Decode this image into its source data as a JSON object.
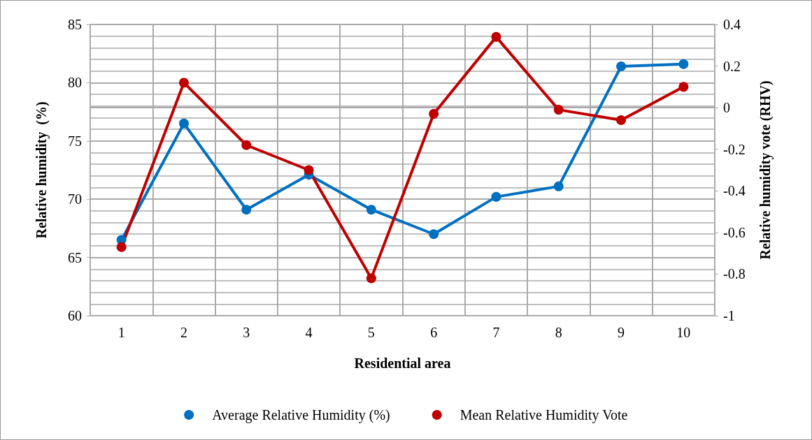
{
  "chart_data": {
    "type": "line",
    "xlabel": "Residential area",
    "ylabel": "Relative humidity  (%)",
    "y2label": "Relative humidity vote (RHV)",
    "categories": [
      "1",
      "2",
      "3",
      "4",
      "5",
      "6",
      "7",
      "8",
      "9",
      "10"
    ],
    "series": [
      {
        "name": "Average Relative Humidity (%)",
        "color": "#0070c0",
        "values": [
          66.5,
          76.5,
          69.1,
          72.1,
          69.1,
          67.0,
          70.2,
          71.1,
          81.4,
          81.6
        ]
      },
      {
        "name": "Mean Relative Humidity Vote",
        "color": "#c00000",
        "axis": "y2",
        "values": [
          -0.67,
          0.12,
          -0.18,
          -0.3,
          -0.82,
          -0.03,
          0.34,
          -0.01,
          -0.06,
          0.1
        ]
      }
    ],
    "ylim": [
      60,
      85
    ],
    "yticks": [
      60,
      65,
      70,
      75,
      80,
      85
    ],
    "y2lim": [
      -1,
      0.4
    ],
    "y2ticks": [
      -1,
      -0.8,
      -0.6,
      -0.4,
      -0.2,
      0,
      0.2,
      0.4
    ],
    "grid": true,
    "legend": "bottom",
    "marker": "circle",
    "line_style": "solid"
  }
}
